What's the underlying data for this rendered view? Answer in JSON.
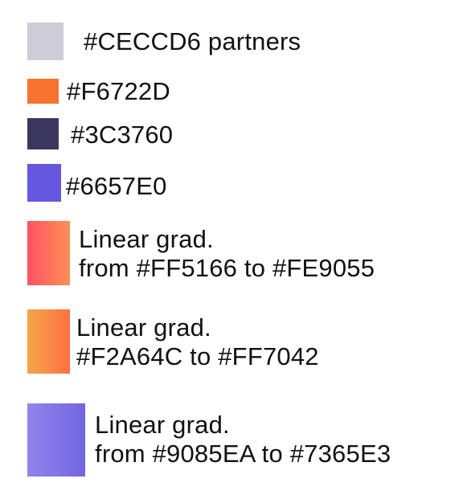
{
  "legend": {
    "items": [
      {
        "swatch": {
          "type": "solid",
          "color": "#CECCD6"
        },
        "lines": [
          "#CECCD6 partners"
        ]
      },
      {
        "swatch": {
          "type": "solid",
          "color": "#F6722D"
        },
        "lines": [
          "#F6722D"
        ]
      },
      {
        "swatch": {
          "type": "solid",
          "color": "#3C3760"
        },
        "lines": [
          "#3C3760"
        ]
      },
      {
        "swatch": {
          "type": "solid",
          "color": "#6657E0"
        },
        "lines": [
          "#6657E0"
        ]
      },
      {
        "swatch": {
          "type": "linear-gradient",
          "from": "#FF5166",
          "to": "#FE9055"
        },
        "lines": [
          "Linear grad.",
          "from #FF5166 to #FE9055"
        ]
      },
      {
        "swatch": {
          "type": "linear-gradient",
          "from": "#F2A64C",
          "to": "#FF7042"
        },
        "lines": [
          "Linear grad.",
          "#F2A64C to  #FF7042"
        ]
      },
      {
        "swatch": {
          "type": "linear-gradient",
          "from": "#9085EA",
          "to": "#7365E3"
        },
        "lines": [
          "Linear grad.",
          "from #9085EA to #7365E3"
        ]
      }
    ]
  }
}
